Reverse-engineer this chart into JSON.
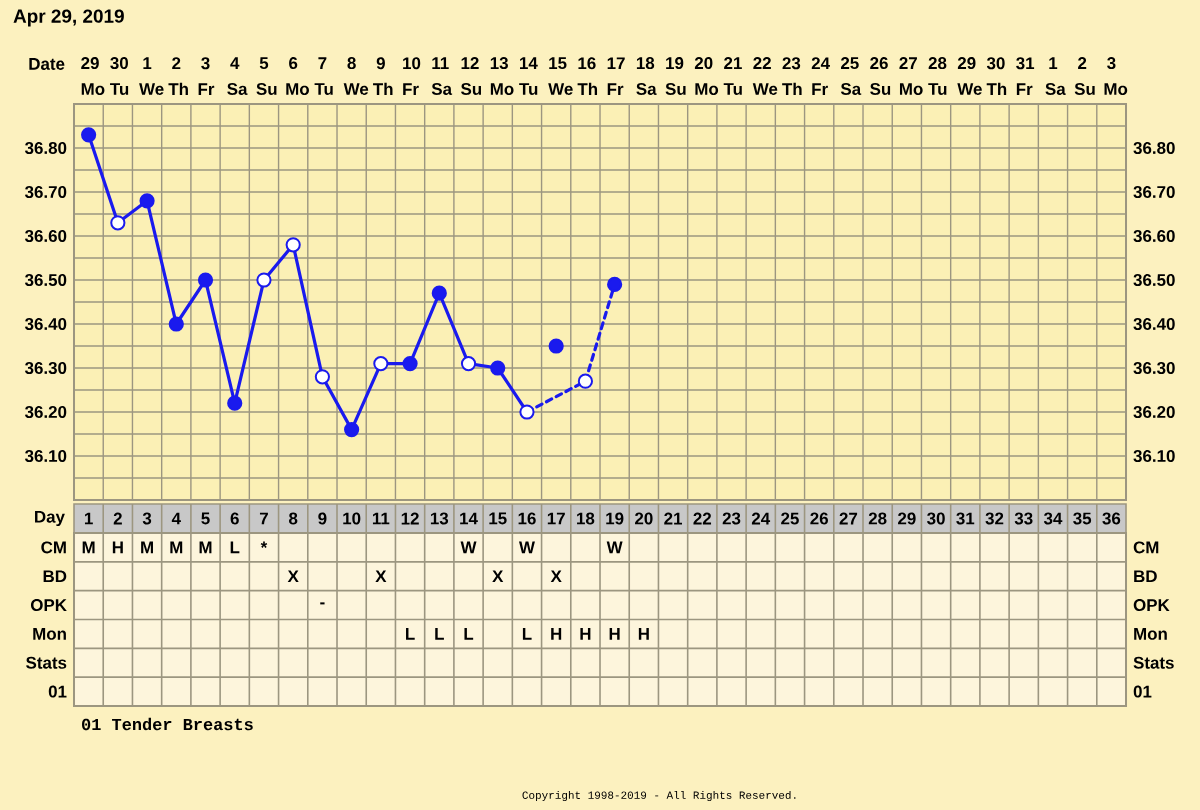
{
  "chart_data": [
    {
      "type": "line",
      "title": "Apr 29, 2019",
      "xlabel": "Date",
      "categories": [
        "29 Mo",
        "30 Tu",
        "1 We",
        "2 Th",
        "3 Fr",
        "4 Sa",
        "5 Su",
        "6 Mo",
        "7 Tu",
        "8 We",
        "9 Th",
        "10 Fr",
        "11 Sa",
        "12 Su",
        "13 Mo",
        "14 Tu",
        "15 We",
        "16 Th",
        "17 Fr",
        "18 Sa",
        "19 Su",
        "20 Mo",
        "21 Tu",
        "22 We",
        "23 Th",
        "24 Fr",
        "25 Sa",
        "26 Su",
        "27 Mo",
        "28 Tu",
        "29 We",
        "30 Th",
        "31 Fr",
        "1 Sa",
        "2 Su",
        "3 Mo"
      ],
      "ylim": [
        36.0,
        36.9
      ],
      "yticks": [
        {
          "value": 36.1,
          "label": "36.10"
        },
        {
          "value": 36.2,
          "label": "36.20"
        },
        {
          "value": 36.3,
          "label": "36.30"
        },
        {
          "value": 36.4,
          "label": "36.40"
        },
        {
          "value": 36.5,
          "label": "36.50"
        },
        {
          "value": 36.6,
          "label": "36.60"
        },
        {
          "value": 36.7,
          "label": "36.70"
        },
        {
          "value": 36.8,
          "label": "36.80"
        }
      ],
      "y2lim": [
        36.0,
        36.9
      ],
      "y2ticks": [
        {
          "value": 36.1,
          "label": "36.10"
        },
        {
          "value": 36.2,
          "label": "36.20"
        },
        {
          "value": 36.3,
          "label": "36.30"
        },
        {
          "value": 36.4,
          "label": "36.40"
        },
        {
          "value": 36.5,
          "label": "36.50"
        },
        {
          "value": 36.6,
          "label": "36.60"
        },
        {
          "value": 36.7,
          "label": "36.70"
        },
        {
          "value": 36.8,
          "label": "36.80"
        }
      ],
      "grid": true,
      "series": [
        {
          "type": "line",
          "line_style": "solid",
          "color": "#1a1aee",
          "values": [
            36.83,
            36.63,
            36.68,
            36.4,
            36.5,
            36.22,
            36.5,
            36.58,
            36.28,
            36.16,
            36.31,
            36.31,
            36.47,
            36.31,
            36.3,
            36.2,
            null,
            null,
            null,
            null,
            null,
            null,
            null,
            null,
            null,
            null,
            null,
            null,
            null,
            null,
            null,
            null,
            null,
            null,
            null,
            null
          ]
        },
        {
          "type": "line",
          "line_style": "dashed",
          "color": "#1a1aee",
          "values": [
            null,
            null,
            null,
            null,
            null,
            null,
            null,
            null,
            null,
            null,
            null,
            null,
            null,
            null,
            null,
            36.2,
            null,
            36.27,
            36.49,
            null,
            null,
            null,
            null,
            null,
            null,
            null,
            null,
            null,
            null,
            null,
            null,
            null,
            null,
            null,
            null,
            null
          ]
        },
        {
          "type": "scatter",
          "color": "#1a1aee",
          "values": [
            36.83,
            null,
            36.68,
            36.4,
            36.5,
            36.22,
            null,
            null,
            null,
            36.16,
            null,
            36.31,
            36.47,
            null,
            36.3,
            null,
            36.35,
            null,
            36.49,
            null,
            null,
            null,
            null,
            null,
            null,
            null,
            null,
            null,
            null,
            null,
            null,
            null,
            null,
            null,
            null,
            null
          ]
        },
        {
          "type": "scatter",
          "color": "#ffffff",
          "values": [
            null,
            36.63,
            null,
            null,
            null,
            null,
            36.5,
            36.58,
            36.28,
            null,
            36.31,
            null,
            null,
            36.31,
            null,
            36.2,
            null,
            36.27,
            null,
            null,
            null,
            null,
            null,
            null,
            null,
            null,
            null,
            null,
            null,
            null,
            null,
            null,
            null,
            null,
            null,
            null
          ]
        }
      ]
    },
    {
      "type": "heatmap",
      "xlabel": "Day",
      "categories": [
        "1",
        "2",
        "3",
        "4",
        "5",
        "6",
        "7",
        "8",
        "9",
        "10",
        "11",
        "12",
        "13",
        "14",
        "15",
        "16",
        "17",
        "18",
        "19",
        "20",
        "21",
        "22",
        "23",
        "24",
        "25",
        "26",
        "27",
        "28",
        "29",
        "30",
        "31",
        "32",
        "33",
        "34",
        "35",
        "36"
      ],
      "y_categories": [
        "CM",
        "BD",
        "OPK",
        "Mon",
        "Stats",
        "01"
      ],
      "y2_categories": [
        "CM",
        "BD",
        "OPK",
        "Mon",
        "Stats",
        "01"
      ],
      "cells": [
        [
          null,
          null,
          null,
          null,
          null,
          null,
          null,
          null,
          null,
          null,
          null,
          null,
          null,
          null,
          null,
          null,
          null,
          null,
          null,
          null,
          null,
          null,
          null,
          null,
          null,
          null,
          null,
          null,
          null,
          null,
          null,
          null,
          null,
          null,
          null,
          null
        ],
        [
          null,
          null,
          null,
          null,
          null,
          null,
          null,
          null,
          null,
          null,
          null,
          null,
          null,
          null,
          null,
          null,
          null,
          null,
          null,
          null,
          null,
          null,
          null,
          null,
          null,
          null,
          null,
          null,
          null,
          null,
          null,
          null,
          null,
          null,
          null,
          null
        ],
        [
          null,
          null,
          null,
          null,
          null,
          null,
          null,
          null,
          null,
          null,
          null,
          null,
          null,
          null,
          null,
          null,
          null,
          null,
          null,
          null,
          null,
          null,
          null,
          null,
          null,
          null,
          null,
          null,
          null,
          null,
          null,
          null,
          null,
          null,
          null,
          null
        ],
        [
          null,
          null,
          null,
          null,
          null,
          null,
          null,
          null,
          null,
          null,
          null,
          null,
          null,
          null,
          null,
          null,
          null,
          null,
          null,
          null,
          null,
          null,
          null,
          null,
          null,
          null,
          null,
          null,
          null,
          null,
          null,
          null,
          null,
          null,
          null,
          null
        ],
        [
          null,
          null,
          null,
          null,
          null,
          null,
          null,
          null,
          null,
          null,
          null,
          null,
          null,
          null,
          null,
          null,
          null,
          null,
          null,
          null,
          null,
          null,
          null,
          null,
          null,
          null,
          null,
          null,
          null,
          null,
          null,
          null,
          null,
          null,
          null,
          null
        ],
        [
          null,
          null,
          null,
          null,
          null,
          null,
          null,
          null,
          null,
          null,
          null,
          null,
          null,
          null,
          null,
          null,
          null,
          null,
          null,
          null,
          null,
          null,
          null,
          null,
          null,
          null,
          null,
          null,
          null,
          null,
          null,
          null,
          null,
          null,
          null,
          null
        ]
      ],
      "cell_labels": [
        [
          "M",
          "H",
          "M",
          "M",
          "M",
          "L",
          "*",
          null,
          null,
          null,
          null,
          null,
          null,
          "W",
          null,
          "W",
          null,
          null,
          "W",
          null,
          null,
          null,
          null,
          null,
          null,
          null,
          null,
          null,
          null,
          null,
          null,
          null,
          null,
          null,
          null,
          null
        ],
        [
          null,
          null,
          null,
          null,
          null,
          null,
          null,
          "X",
          null,
          null,
          "X",
          null,
          null,
          null,
          "X",
          null,
          "X",
          null,
          null,
          null,
          null,
          null,
          null,
          null,
          null,
          null,
          null,
          null,
          null,
          null,
          null,
          null,
          null,
          null,
          null,
          null
        ],
        [
          null,
          null,
          null,
          null,
          null,
          null,
          null,
          null,
          "-",
          null,
          null,
          null,
          null,
          null,
          null,
          null,
          null,
          null,
          null,
          null,
          null,
          null,
          null,
          null,
          null,
          null,
          null,
          null,
          null,
          null,
          null,
          null,
          null,
          null,
          null,
          null
        ],
        [
          null,
          null,
          null,
          null,
          null,
          null,
          null,
          null,
          null,
          null,
          null,
          "L",
          "L",
          "L",
          null,
          "L",
          "H",
          "H",
          "H",
          "H",
          null,
          null,
          null,
          null,
          null,
          null,
          null,
          null,
          null,
          null,
          null,
          null,
          null,
          null,
          null,
          null
        ],
        [
          null,
          null,
          null,
          null,
          null,
          null,
          null,
          null,
          null,
          null,
          null,
          null,
          null,
          null,
          null,
          null,
          null,
          null,
          null,
          null,
          null,
          null,
          null,
          null,
          null,
          null,
          null,
          null,
          null,
          null,
          null,
          null,
          null,
          null,
          null,
          null
        ],
        [
          null,
          null,
          null,
          null,
          null,
          null,
          null,
          null,
          null,
          null,
          null,
          null,
          null,
          null,
          null,
          null,
          null,
          null,
          null,
          null,
          null,
          null,
          null,
          null,
          null,
          null,
          null,
          null,
          null,
          null,
          null,
          null,
          null,
          null,
          null,
          null
        ]
      ],
      "annotations": [
        "01 Tender Breasts",
        "Copyright 1998-2019 - All Rights Reserved."
      ]
    }
  ]
}
